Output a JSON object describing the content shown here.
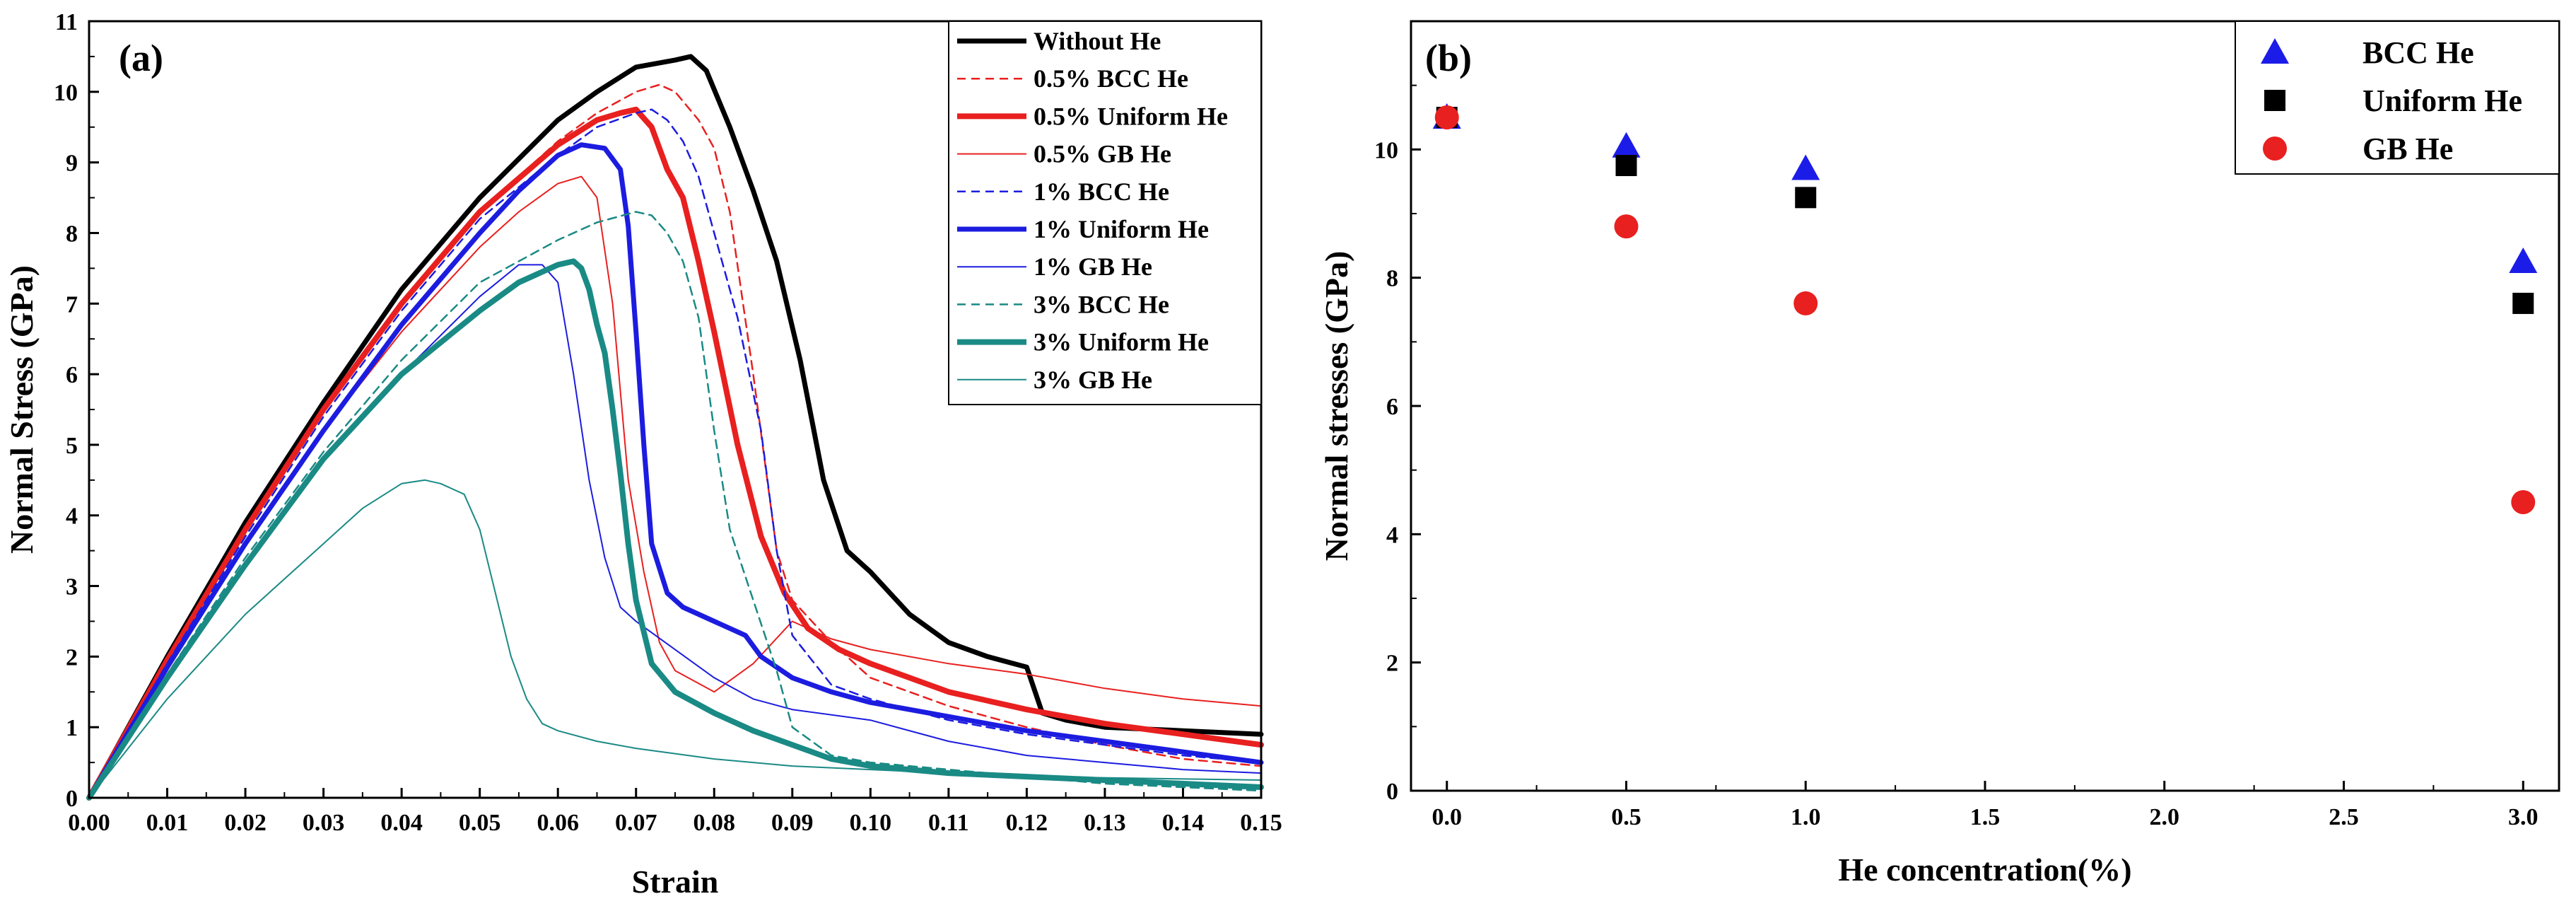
{
  "chart_data": [
    {
      "type": "line",
      "panel_label": "(a)",
      "xlabel": "Strain",
      "ylabel": "Normal Stress (GPa)",
      "xlim": [
        0.0,
        0.15
      ],
      "ylim": [
        0,
        11
      ],
      "xticks": [
        "0.00",
        "0.01",
        "0.02",
        "0.03",
        "0.04",
        "0.05",
        "0.06",
        "0.07",
        "0.08",
        "0.09",
        "0.10",
        "0.11",
        "0.12",
        "0.13",
        "0.14",
        "0.15"
      ],
      "yticks": [
        "0",
        "1",
        "2",
        "3",
        "4",
        "5",
        "6",
        "7",
        "8",
        "9",
        "10",
        "11"
      ],
      "legend_position": "top-right",
      "series": [
        {
          "name": "Without He",
          "color": "#000000",
          "width": 7,
          "dash": "solid",
          "x": [
            0,
            0.01,
            0.02,
            0.03,
            0.04,
            0.05,
            0.06,
            0.065,
            0.07,
            0.075,
            0.077,
            0.079,
            0.082,
            0.085,
            0.088,
            0.091,
            0.094,
            0.097,
            0.1,
            0.105,
            0.11,
            0.115,
            0.12,
            0.122,
            0.125,
            0.13,
            0.14,
            0.15
          ],
          "y": [
            0,
            2.0,
            3.9,
            5.6,
            7.2,
            8.5,
            9.6,
            10.0,
            10.35,
            10.45,
            10.5,
            10.3,
            9.5,
            8.6,
            7.6,
            6.2,
            4.5,
            3.5,
            3.2,
            2.6,
            2.2,
            2.0,
            1.85,
            1.2,
            1.1,
            1.0,
            0.95,
            0.9
          ]
        },
        {
          "name": "0.5% BCC He",
          "color": "#e8201f",
          "width": 2.5,
          "dash": "12,8",
          "x": [
            0,
            0.01,
            0.02,
            0.03,
            0.04,
            0.05,
            0.06,
            0.065,
            0.07,
            0.073,
            0.075,
            0.078,
            0.08,
            0.082,
            0.085,
            0.088,
            0.09,
            0.095,
            0.1,
            0.11,
            0.12,
            0.13,
            0.14,
            0.15
          ],
          "y": [
            0,
            1.9,
            3.8,
            5.5,
            7.0,
            8.3,
            9.3,
            9.7,
            10.0,
            10.1,
            10.0,
            9.6,
            9.2,
            8.3,
            6.0,
            3.5,
            2.8,
            2.2,
            1.7,
            1.3,
            1.0,
            0.75,
            0.55,
            0.45
          ]
        },
        {
          "name": "0.5% Uniform He",
          "color": "#e8201f",
          "width": 8,
          "dash": "solid",
          "x": [
            0,
            0.01,
            0.02,
            0.03,
            0.04,
            0.05,
            0.06,
            0.065,
            0.068,
            0.07,
            0.072,
            0.074,
            0.076,
            0.078,
            0.08,
            0.083,
            0.086,
            0.089,
            0.092,
            0.096,
            0.1,
            0.11,
            0.12,
            0.13,
            0.14,
            0.15
          ],
          "y": [
            0,
            1.95,
            3.8,
            5.5,
            7.0,
            8.3,
            9.25,
            9.6,
            9.7,
            9.75,
            9.5,
            8.9,
            8.5,
            7.6,
            6.6,
            5.0,
            3.7,
            2.9,
            2.4,
            2.1,
            1.9,
            1.5,
            1.25,
            1.05,
            0.9,
            0.75
          ]
        },
        {
          "name": "0.5% GB He",
          "color": "#e8201f",
          "width": 2,
          "dash": "solid",
          "x": [
            0,
            0.01,
            0.02,
            0.03,
            0.04,
            0.05,
            0.055,
            0.06,
            0.063,
            0.065,
            0.067,
            0.069,
            0.071,
            0.073,
            0.075,
            0.08,
            0.085,
            0.09,
            0.095,
            0.1,
            0.11,
            0.12,
            0.13,
            0.14,
            0.15
          ],
          "y": [
            0,
            1.8,
            3.6,
            5.2,
            6.6,
            7.8,
            8.3,
            8.7,
            8.8,
            8.5,
            7.0,
            4.5,
            3.2,
            2.2,
            1.8,
            1.5,
            1.9,
            2.5,
            2.25,
            2.1,
            1.9,
            1.75,
            1.55,
            1.4,
            1.3
          ]
        },
        {
          "name": "1% BCC He",
          "color": "#1c1ce0",
          "width": 2.5,
          "dash": "12,8",
          "x": [
            0,
            0.01,
            0.02,
            0.03,
            0.04,
            0.05,
            0.06,
            0.065,
            0.07,
            0.072,
            0.074,
            0.076,
            0.078,
            0.08,
            0.083,
            0.086,
            0.088,
            0.09,
            0.095,
            0.1,
            0.11,
            0.12,
            0.13,
            0.14,
            0.15
          ],
          "y": [
            0,
            1.9,
            3.7,
            5.4,
            6.9,
            8.2,
            9.1,
            9.5,
            9.7,
            9.75,
            9.6,
            9.3,
            8.8,
            8.0,
            6.8,
            5.2,
            3.5,
            2.3,
            1.6,
            1.4,
            1.1,
            0.9,
            0.75,
            0.6,
            0.5
          ]
        },
        {
          "name": "1% Uniform He",
          "color": "#1c1ce0",
          "width": 7,
          "dash": "solid",
          "x": [
            0,
            0.01,
            0.02,
            0.03,
            0.04,
            0.05,
            0.055,
            0.06,
            0.063,
            0.066,
            0.068,
            0.069,
            0.07,
            0.071,
            0.072,
            0.074,
            0.076,
            0.08,
            0.084,
            0.086,
            0.09,
            0.095,
            0.1,
            0.11,
            0.12,
            0.13,
            0.14,
            0.15
          ],
          "y": [
            0,
            1.85,
            3.6,
            5.2,
            6.7,
            8.0,
            8.6,
            9.1,
            9.25,
            9.2,
            8.9,
            8.1,
            6.6,
            5.0,
            3.6,
            2.9,
            2.7,
            2.5,
            2.3,
            2.0,
            1.7,
            1.5,
            1.35,
            1.15,
            0.95,
            0.8,
            0.65,
            0.5
          ]
        },
        {
          "name": "1% GB He",
          "color": "#1c1ce0",
          "width": 2,
          "dash": "solid",
          "x": [
            0,
            0.01,
            0.02,
            0.03,
            0.04,
            0.05,
            0.055,
            0.058,
            0.06,
            0.062,
            0.064,
            0.066,
            0.068,
            0.07,
            0.075,
            0.08,
            0.085,
            0.09,
            0.1,
            0.11,
            0.12,
            0.13,
            0.14,
            0.15
          ],
          "y": [
            0,
            1.7,
            3.3,
            4.8,
            6.0,
            7.1,
            7.55,
            7.55,
            7.3,
            6.0,
            4.5,
            3.4,
            2.7,
            2.5,
            2.1,
            1.7,
            1.4,
            1.25,
            1.1,
            0.8,
            0.6,
            0.5,
            0.4,
            0.35
          ]
        },
        {
          "name": "3% BCC He",
          "color": "#1a8a85",
          "width": 2.5,
          "dash": "12,8",
          "x": [
            0,
            0.01,
            0.02,
            0.03,
            0.04,
            0.05,
            0.06,
            0.065,
            0.07,
            0.072,
            0.074,
            0.076,
            0.078,
            0.08,
            0.082,
            0.085,
            0.088,
            0.09,
            0.095,
            0.1,
            0.11,
            0.12,
            0.13,
            0.14,
            0.15
          ],
          "y": [
            0,
            1.75,
            3.4,
            4.9,
            6.2,
            7.3,
            7.9,
            8.15,
            8.3,
            8.25,
            8.0,
            7.6,
            6.8,
            5.2,
            3.8,
            2.8,
            1.8,
            1.0,
            0.6,
            0.5,
            0.4,
            0.3,
            0.2,
            0.15,
            0.1
          ]
        },
        {
          "name": "3% Uniform He",
          "color": "#1a8a85",
          "width": 8,
          "dash": "solid",
          "x": [
            0,
            0.01,
            0.02,
            0.03,
            0.04,
            0.05,
            0.055,
            0.06,
            0.062,
            0.063,
            0.064,
            0.065,
            0.066,
            0.067,
            0.068,
            0.069,
            0.07,
            0.072,
            0.075,
            0.08,
            0.085,
            0.09,
            0.095,
            0.1,
            0.11,
            0.12,
            0.13,
            0.14,
            0.15
          ],
          "y": [
            0,
            1.7,
            3.3,
            4.8,
            6.0,
            6.9,
            7.3,
            7.55,
            7.6,
            7.5,
            7.2,
            6.7,
            6.3,
            5.5,
            4.6,
            3.6,
            2.8,
            1.9,
            1.5,
            1.2,
            0.95,
            0.75,
            0.55,
            0.45,
            0.35,
            0.3,
            0.25,
            0.2,
            0.15
          ]
        },
        {
          "name": "3% GB He",
          "color": "#1a8a85",
          "width": 2,
          "dash": "solid",
          "x": [
            0,
            0.01,
            0.02,
            0.03,
            0.035,
            0.04,
            0.043,
            0.045,
            0.048,
            0.05,
            0.052,
            0.054,
            0.056,
            0.058,
            0.06,
            0.065,
            0.07,
            0.08,
            0.09,
            0.1,
            0.12,
            0.15
          ],
          "y": [
            0,
            1.4,
            2.6,
            3.6,
            4.1,
            4.45,
            4.5,
            4.45,
            4.3,
            3.8,
            2.9,
            2.0,
            1.4,
            1.05,
            0.95,
            0.8,
            0.7,
            0.55,
            0.45,
            0.4,
            0.3,
            0.25
          ]
        }
      ]
    },
    {
      "type": "scatter",
      "panel_label": "(b)",
      "xlabel": "He concentration(%)",
      "ylabel": "Normal stresses (GPa)",
      "xlim": [
        -0.1,
        3.1
      ],
      "ylim": [
        0,
        12
      ],
      "xticks": [
        "0.0",
        "0.5",
        "1.0",
        "1.5",
        "2.0",
        "2.5",
        "3.0"
      ],
      "yticks": [
        "0",
        "2",
        "4",
        "6",
        "8",
        "10"
      ],
      "legend_position": "top-right",
      "series": [
        {
          "name": "BCC He",
          "marker": "triangle",
          "color": "#1c1ce8",
          "x": [
            0,
            0.5,
            1.0,
            3.0
          ],
          "y": [
            10.5,
            10.05,
            9.7,
            8.25
          ]
        },
        {
          "name": "Uniform He",
          "marker": "square",
          "color": "#000000",
          "x": [
            0,
            0.5,
            1.0,
            3.0
          ],
          "y": [
            10.5,
            9.75,
            9.25,
            7.6
          ]
        },
        {
          "name": "GB He",
          "marker": "circle",
          "color": "#e8201f",
          "x": [
            0,
            0.5,
            1.0,
            3.0
          ],
          "y": [
            10.5,
            8.8,
            7.6,
            4.5
          ]
        }
      ]
    }
  ]
}
